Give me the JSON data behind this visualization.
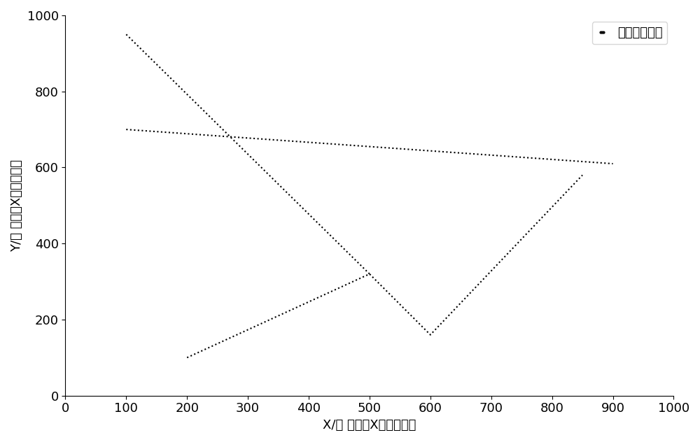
{
  "tracks": [
    {
      "x": [
        100,
        500
      ],
      "y": [
        950,
        320
      ],
      "color": "#000000",
      "linestyle": "dotted",
      "linewidth": 1.5
    },
    {
      "x": [
        200,
        500,
        600,
        850
      ],
      "y": [
        100,
        320,
        160,
        580
      ],
      "color": "#000000",
      "linestyle": "dotted",
      "linewidth": 1.5
    },
    {
      "x": [
        100,
        900
      ],
      "y": [
        700,
        610
      ],
      "color": "#000000",
      "linestyle": "dotted",
      "linewidth": 1.5
    }
  ],
  "xlim": [
    0,
    1000
  ],
  "ylim": [
    0,
    1000
  ],
  "xticks": [
    0,
    100,
    200,
    300,
    400,
    500,
    600,
    700,
    800,
    900,
    1000
  ],
  "yticks": [
    0,
    200,
    400,
    600,
    800,
    1000
  ],
  "xlabel": "X/米 目标在X轴上的坐标",
  "ylabel": "Y/米 目标在X轴上的坐标",
  "legend_label": "目标真实轨迹",
  "background_color": "#ffffff",
  "axis_color": "#000000",
  "font_size": 13,
  "legend_font_size": 13,
  "label_font_size": 13
}
